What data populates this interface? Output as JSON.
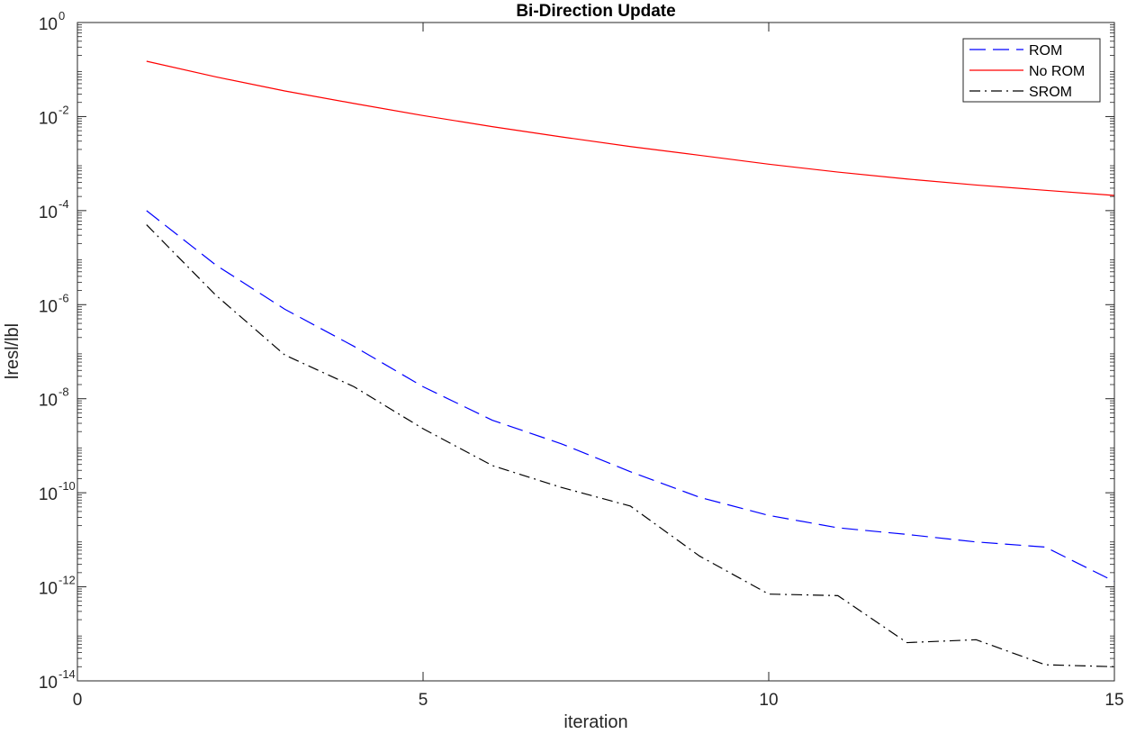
{
  "chart_data": {
    "type": "line",
    "title": "Bi-Direction Update",
    "xlabel": "iteration",
    "ylabel": "lresl/lbl",
    "xlim": [
      0,
      15
    ],
    "ylim": [
      1e-14,
      1
    ],
    "yscale": "log",
    "grid": false,
    "legend_position": "top-right",
    "x_ticks": [
      0,
      5,
      10,
      15
    ],
    "x_tick_labels": [
      "0",
      "5",
      "10",
      "15"
    ],
    "y_ticks": [
      1e-14,
      1e-12,
      1e-10,
      1e-08,
      1e-06,
      0.0001,
      0.01,
      1
    ],
    "y_tick_labels": [
      {
        "base": "10",
        "exp": "-14"
      },
      {
        "base": "10",
        "exp": "-12"
      },
      {
        "base": "10",
        "exp": "-10"
      },
      {
        "base": "10",
        "exp": "-8"
      },
      {
        "base": "10",
        "exp": "-6"
      },
      {
        "base": "10",
        "exp": "-4"
      },
      {
        "base": "10",
        "exp": "-2"
      },
      {
        "base": "10",
        "exp": "0"
      }
    ],
    "x": [
      1,
      2,
      3,
      4,
      5,
      6,
      7,
      8,
      9,
      10,
      11,
      12,
      13,
      14,
      15
    ],
    "series": [
      {
        "name": "ROM",
        "color": "#0000ff",
        "style": "dashed",
        "values": [
          0.0001,
          7e-06,
          8e-07,
          1.3e-07,
          1.8e-08,
          3.5e-09,
          1.1e-09,
          2.8e-10,
          8e-11,
          3.3e-11,
          1.8e-11,
          1.3e-11,
          9e-12,
          7e-12,
          1.3e-12
        ]
      },
      {
        "name": "No ROM",
        "color": "#ff0000",
        "style": "solid",
        "values": [
          0.15,
          0.07,
          0.035,
          0.019,
          0.0105,
          0.0061,
          0.0037,
          0.0023,
          0.0015,
          0.00097,
          0.00066,
          0.00047,
          0.00035,
          0.00027,
          0.00021
        ]
      },
      {
        "name": "SROM",
        "color": "#000000",
        "style": "dashdot",
        "values": [
          5e-05,
          1.6e-06,
          8.5e-08,
          1.8e-08,
          2.3e-09,
          3.8e-10,
          1.3e-10,
          5.2e-11,
          4.5e-12,
          7e-13,
          6.5e-13,
          6.5e-14,
          7.5e-14,
          2.2e-14,
          2e-14
        ]
      }
    ]
  }
}
